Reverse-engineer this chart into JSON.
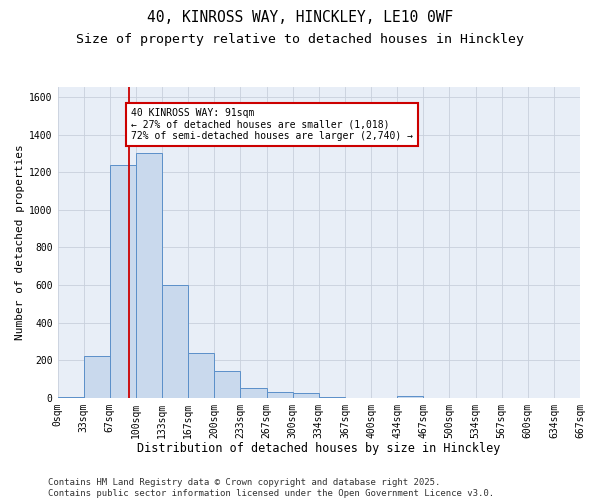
{
  "title1": "40, KINROSS WAY, HINCKLEY, LE10 0WF",
  "title2": "Size of property relative to detached houses in Hinckley",
  "xlabel": "Distribution of detached houses by size in Hinckley",
  "ylabel": "Number of detached properties",
  "bar_values": [
    5,
    220,
    1240,
    1300,
    600,
    240,
    140,
    50,
    30,
    25,
    5,
    0,
    0,
    10,
    0,
    0,
    0,
    0,
    0,
    0
  ],
  "bin_labels": [
    "0sqm",
    "33sqm",
    "67sqm",
    "100sqm",
    "133sqm",
    "167sqm",
    "200sqm",
    "233sqm",
    "267sqm",
    "300sqm",
    "334sqm",
    "367sqm",
    "400sqm",
    "434sqm",
    "467sqm",
    "500sqm",
    "534sqm",
    "567sqm",
    "600sqm",
    "634sqm",
    "667sqm"
  ],
  "bar_color": "#c9d9ed",
  "bar_edge_color": "#5b8fc9",
  "grid_color": "#c8d0dc",
  "background_color": "#e8eef7",
  "vline_x": 91,
  "vline_color": "#cc0000",
  "annotation_text": "40 KINROSS WAY: 91sqm\n← 27% of detached houses are smaller (1,018)\n72% of semi-detached houses are larger (2,740) →",
  "annotation_box_color": "#cc0000",
  "ylim": [
    0,
    1650
  ],
  "bin_width": 33.33,
  "yticks": [
    0,
    200,
    400,
    600,
    800,
    1000,
    1200,
    1400,
    1600
  ],
  "footer_text": "Contains HM Land Registry data © Crown copyright and database right 2025.\nContains public sector information licensed under the Open Government Licence v3.0.",
  "title1_fontsize": 10.5,
  "title2_fontsize": 9.5,
  "xlabel_fontsize": 8.5,
  "ylabel_fontsize": 8,
  "tick_fontsize": 7,
  "annot_fontsize": 7,
  "footer_fontsize": 6.5
}
